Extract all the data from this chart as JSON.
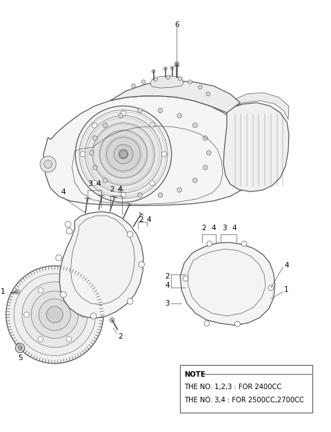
{
  "background_color": "#ffffff",
  "line_color": "#555555",
  "note_text": [
    "NOTE",
    "THE NO. 1,2,3 : FOR 2400CC",
    "THE NO. 3,4 : FOR 2500CC,2700CC"
  ],
  "label_fontsize": 7.5,
  "note_fontsize": 7.2,
  "fig_width": 4.8,
  "fig_height": 6.25,
  "dpi": 100
}
